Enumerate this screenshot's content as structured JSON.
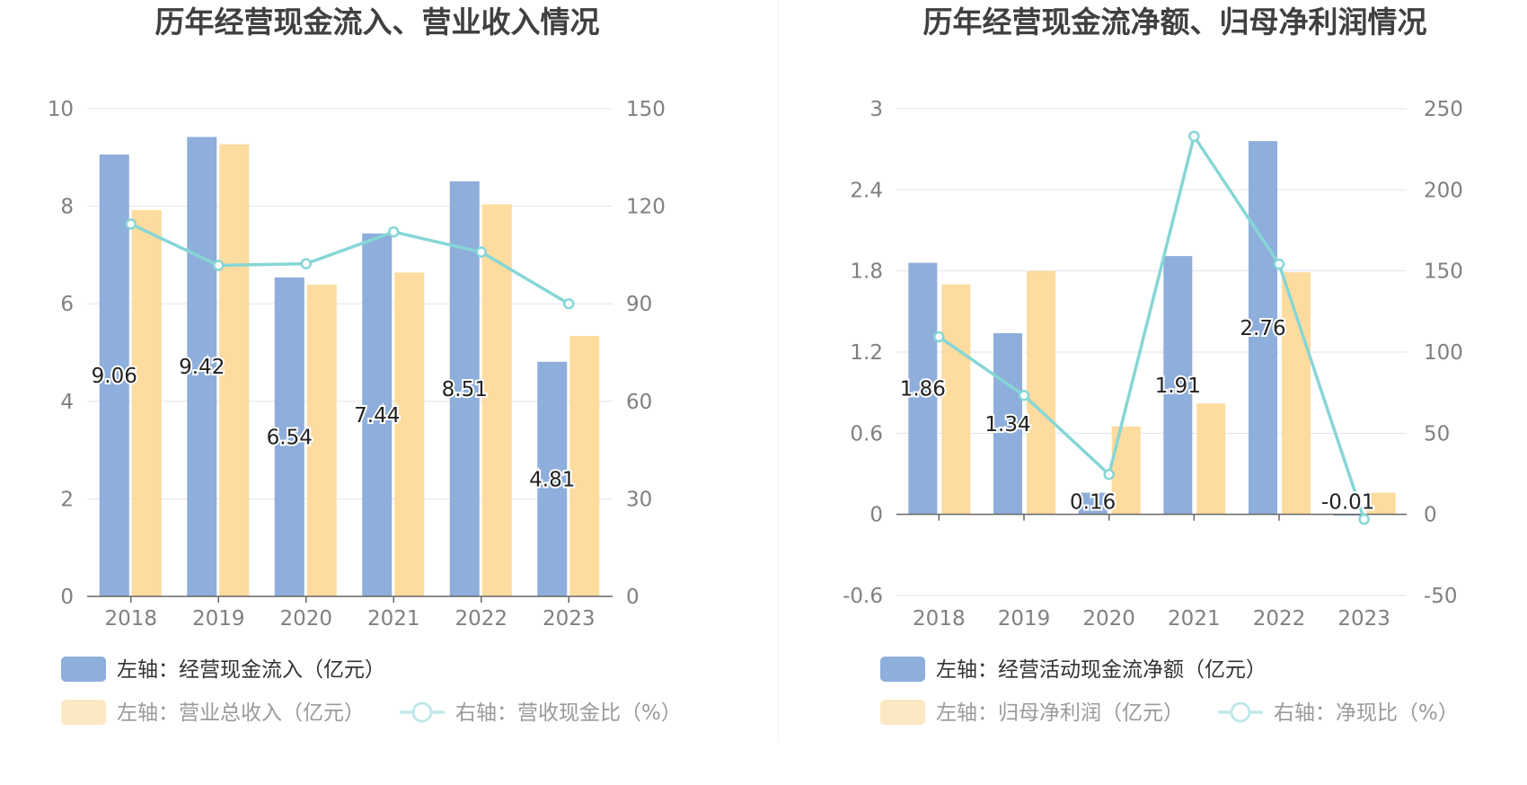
{
  "colors": {
    "bar_primary": "#8eaedb",
    "bar_secondary": "#fedb9e",
    "bar_secondary_legend": "#fde8c4",
    "line": "#86d6d6",
    "line_legend": "#c0e8ea",
    "grid": "#dfe3f0",
    "axis": "#666666",
    "legend_active_text": "#333333",
    "legend_muted_text": "#9a9a9a",
    "divider": "#eeeeee"
  },
  "chart_data": [
    {
      "type": "bar",
      "title": "历年经营现金流入、营业收入情况",
      "categories": [
        "2018",
        "2019",
        "2020",
        "2021",
        "2022",
        "2023"
      ],
      "ylim": [
        0,
        10
      ],
      "yticks": [
        "10",
        "8",
        "6",
        "4",
        "2",
        "0"
      ],
      "ylim_right": [
        0,
        150
      ],
      "yticks_right": [
        "150",
        "120",
        "90",
        "60",
        "30",
        "0"
      ],
      "series": [
        {
          "name": "左轴：经营现金流入（亿元）",
          "kind": "bar",
          "axis": "left",
          "values": [
            9.06,
            9.42,
            6.54,
            7.44,
            8.51,
            4.81
          ],
          "labels": [
            "9.06",
            "9.42",
            "6.54",
            "7.44",
            "8.51",
            "4.81"
          ]
        },
        {
          "name": "左轴：营业总收入（亿元）",
          "kind": "bar",
          "axis": "left",
          "values": [
            7.92,
            9.27,
            6.39,
            6.64,
            8.04,
            5.34
          ]
        },
        {
          "name": "右轴：营收现金比（%）",
          "kind": "line",
          "axis": "right",
          "values": [
            114.5,
            101.8,
            102.3,
            112.1,
            105.9,
            90.0
          ]
        }
      ]
    },
    {
      "type": "bar",
      "title": "历年经营现金流净额、归母净利润情况",
      "categories": [
        "2018",
        "2019",
        "2020",
        "2021",
        "2022",
        "2023"
      ],
      "ylim": [
        -0.6,
        3
      ],
      "yticks": [
        "3",
        "2.4",
        "1.8",
        "1.2",
        "0.6",
        "0",
        "-0.6"
      ],
      "ylim_right": [
        -50,
        250
      ],
      "yticks_right": [
        "250",
        "200",
        "150",
        "100",
        "50",
        "0",
        "-50"
      ],
      "series": [
        {
          "name": "左轴：经营活动现金流净额（亿元）",
          "kind": "bar",
          "axis": "left",
          "values": [
            1.86,
            1.34,
            0.16,
            1.91,
            2.76,
            -0.01
          ],
          "labels": [
            "1.86",
            "1.34",
            "0.16",
            "1.91",
            "2.76",
            "-0.01"
          ]
        },
        {
          "name": "左轴：归母净利润（亿元）",
          "kind": "bar",
          "axis": "left",
          "values": [
            1.7,
            1.8,
            0.65,
            0.82,
            1.79,
            0.16
          ]
        },
        {
          "name": "右轴：净现比（%）",
          "kind": "line",
          "axis": "right",
          "values": [
            109.4,
            73.3,
            24.6,
            233.0,
            154.2,
            -3.0
          ]
        }
      ]
    }
  ]
}
